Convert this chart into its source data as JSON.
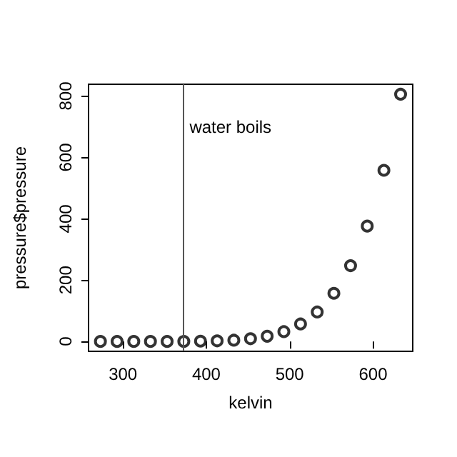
{
  "chart_data": {
    "type": "scatter",
    "xlabel": "kelvin",
    "ylabel": "pressure$pressure",
    "x": [
      273,
      293,
      313,
      333,
      353,
      373,
      393,
      413,
      433,
      453,
      473,
      493,
      513,
      533,
      553,
      573,
      593,
      613,
      633
    ],
    "series": [
      {
        "color": "#000000",
        "values": [
          0,
          0,
          0,
          0,
          0,
          0,
          1,
          2,
          4,
          9,
          17,
          32,
          57,
          96,
          157,
          247,
          376,
          558,
          806
        ]
      }
    ],
    "xlim": [
      258.75,
      647.55
    ],
    "xticks": [
      300,
      400,
      500,
      600
    ],
    "ylim": [
      -32.2,
      838.5
    ],
    "yticks": [
      0,
      200,
      400,
      600,
      800
    ],
    "ref_lines": [
      {
        "axis": "x",
        "value": 373,
        "label": "water boils",
        "color": "#555555"
      }
    ],
    "marker": "circle",
    "grid": false
  }
}
